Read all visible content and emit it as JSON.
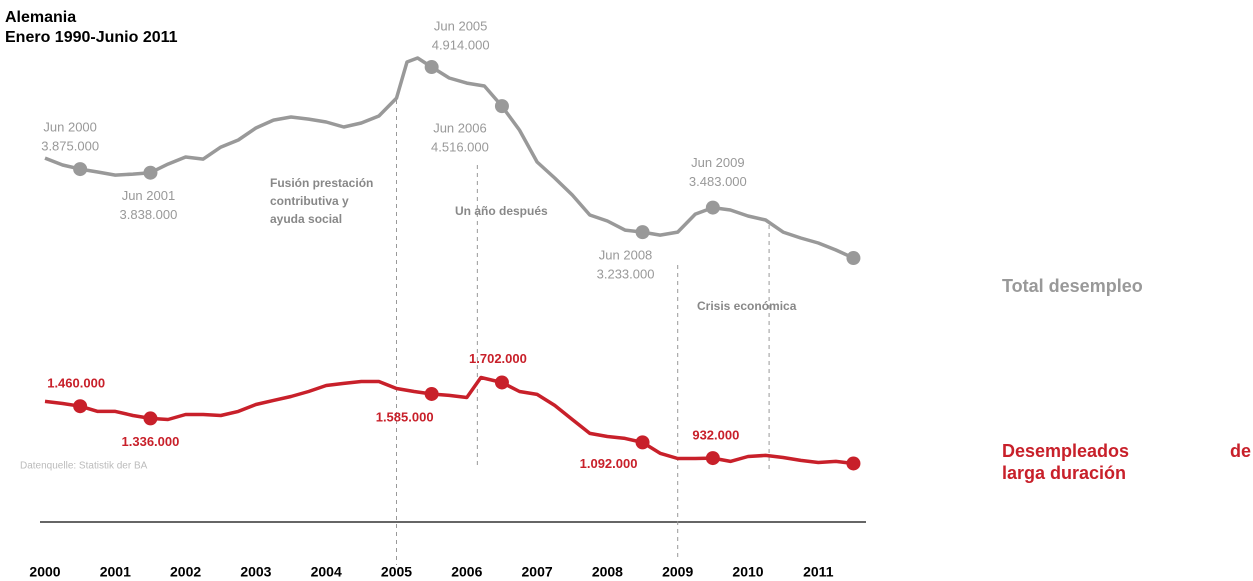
{
  "chart_data": {
    "type": "line",
    "title": "Alemania",
    "subtitle": "Enero 1990-Junio 2011",
    "source": "Datenquelle: Statistik der BA",
    "ylim": [
      0,
      5500000
    ],
    "xticks": [
      2000,
      2001,
      2002,
      2003,
      2004,
      2005,
      2006,
      2007,
      2008,
      2009,
      2010,
      2011
    ],
    "series": [
      {
        "name": "Total desempleo",
        "color": "#999999",
        "x": [
          2000,
          2000.25,
          2000.5,
          2000.75,
          2001,
          2001.25,
          2001.5,
          2001.75,
          2002,
          2002.25,
          2002.5,
          2002.75,
          2003,
          2003.25,
          2003.5,
          2003.75,
          2004,
          2004.25,
          2004.5,
          2004.75,
          2005,
          2005.15,
          2005.3,
          2005.5,
          2005.75,
          2006,
          2006.25,
          2006.5,
          2006.75,
          2007,
          2007.25,
          2007.5,
          2007.75,
          2008,
          2008.25,
          2008.5,
          2008.75,
          2009,
          2009.25,
          2009.5,
          2009.75,
          2010,
          2010.25,
          2010.5,
          2010.75,
          2011,
          2011.25,
          2011.5
        ],
        "values": [
          3987000,
          3916000,
          3875000,
          3845000,
          3814000,
          3824000,
          3838000,
          3926000,
          3998000,
          3977000,
          4099000,
          4171000,
          4293000,
          4374000,
          4405000,
          4384000,
          4354000,
          4303000,
          4344000,
          4415000,
          4598000,
          4965000,
          5006000,
          4914000,
          4802000,
          4751000,
          4721000,
          4516000,
          4272000,
          3947000,
          3784000,
          3611000,
          3407000,
          3346000,
          3254000,
          3233000,
          3203000,
          3233000,
          3417000,
          3483000,
          3458000,
          3397000,
          3356000,
          3233000,
          3173000,
          3122000,
          3051000,
          2969000
        ],
        "annotations": [
          {
            "x": 2000.5,
            "date": "Jun 2000",
            "value": 3875000,
            "value_label": "3.875.000"
          },
          {
            "x": 2001.5,
            "date": "Jun 2001",
            "value": 3838000,
            "value_label": "3.838.000"
          },
          {
            "x": 2005.5,
            "date": "Jun 2005",
            "value": 4914000,
            "value_label": "4.914.000"
          },
          {
            "x": 2006.5,
            "date": "Jun 2006",
            "value": 4516000,
            "value_label": "4.516.000"
          },
          {
            "x": 2008.5,
            "date": "Jun 2008",
            "value": 3233000,
            "value_label": "3.233.000"
          },
          {
            "x": 2009.5,
            "date": "Jun 2009",
            "value": 3483000,
            "value_label": "3.483.000"
          },
          {
            "x": 2011.5,
            "value": 2969000
          }
        ]
      },
      {
        "name": "Desempleados de larga duración",
        "color": "#c8202a",
        "x": [
          2000,
          2000.25,
          2000.5,
          2000.75,
          2001,
          2001.25,
          2001.5,
          2001.75,
          2002,
          2002.25,
          2002.5,
          2002.75,
          2003,
          2003.25,
          2003.5,
          2003.75,
          2004,
          2004.25,
          2004.5,
          2004.75,
          2005,
          2005.25,
          2005.5,
          2005.75,
          2006,
          2006.2,
          2006.5,
          2006.75,
          2007,
          2007.25,
          2007.5,
          2007.75,
          2008,
          2008.25,
          2008.5,
          2008.75,
          2009,
          2009.25,
          2009.5,
          2009.75,
          2010,
          2010.25,
          2010.5,
          2010.75,
          2011,
          2011.25,
          2011.5
        ],
        "values": [
          1509000,
          1488000,
          1460000,
          1407000,
          1407000,
          1366000,
          1336000,
          1325000,
          1376000,
          1376000,
          1366000,
          1407000,
          1478000,
          1519000,
          1559000,
          1610000,
          1671000,
          1692000,
          1712000,
          1712000,
          1641000,
          1610000,
          1585000,
          1570000,
          1549000,
          1753000,
          1702000,
          1610000,
          1580000,
          1468000,
          1325000,
          1183000,
          1152000,
          1132000,
          1092000,
          981000,
          928000,
          928000,
          932000,
          898000,
          948000,
          959000,
          938000,
          908000,
          887000,
          898000,
          877000
        ],
        "annotations": [
          {
            "x": 2000.5,
            "value": 1460000,
            "value_label": "1.460.000"
          },
          {
            "x": 2001.5,
            "value": 1336000,
            "value_label": "1.336.000"
          },
          {
            "x": 2005.5,
            "value": 1585000,
            "value_label": "1.585.000"
          },
          {
            "x": 2006.5,
            "value": 1702000,
            "value_label": "1.702.000"
          },
          {
            "x": 2008.5,
            "value": 1092000,
            "value_label": "1.092.000"
          },
          {
            "x": 2009.5,
            "value": 932000,
            "value_label": "932.000"
          },
          {
            "x": 2011.5,
            "value": 877000
          }
        ]
      }
    ],
    "events": [
      {
        "x": 2005,
        "label": "Fusión prestación contributiva y ayuda social"
      },
      {
        "x": 2006.15,
        "label": "Un año después"
      },
      {
        "x": 2009,
        "label": "Crisis económica"
      },
      {
        "x": 2010.3
      }
    ]
  }
}
